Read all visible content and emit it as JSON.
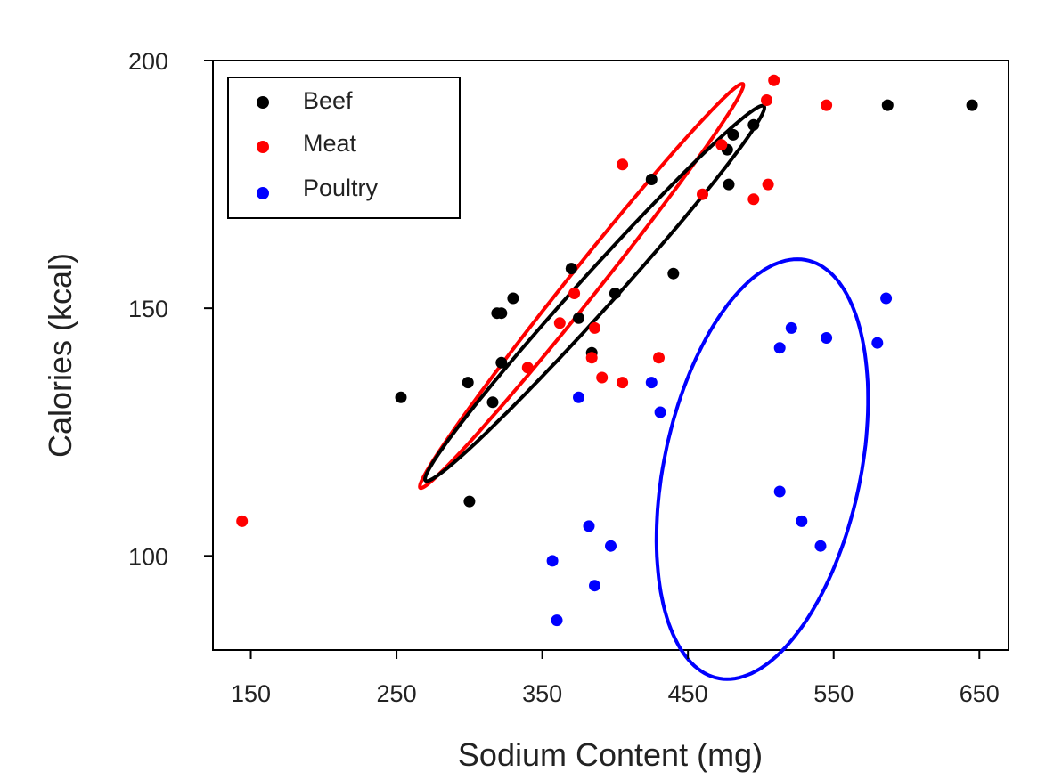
{
  "chart_data": {
    "type": "scatter",
    "title": "",
    "xlabel": "Sodium Content (mg)",
    "ylabel": "Calories (kcal)",
    "xlim": [
      124,
      670
    ],
    "ylim": [
      81,
      200
    ],
    "x_ticks": [
      {
        "value": 150,
        "label": "150"
      },
      {
        "value": 250,
        "label": "250"
      },
      {
        "value": 350,
        "label": "350"
      },
      {
        "value": 450,
        "label": "450"
      },
      {
        "value": 550,
        "label": "550"
      },
      {
        "value": 650,
        "label": "650"
      }
    ],
    "y_ticks": [
      {
        "value": 100,
        "label": "100"
      },
      {
        "value": 150,
        "label": "150"
      },
      {
        "value": 200,
        "label": "200"
      }
    ],
    "grid": false,
    "legend_position": "top-left",
    "series": [
      {
        "name": "Beef",
        "color": "#000000",
        "points": [
          {
            "x": 253,
            "y": 132
          },
          {
            "x": 299,
            "y": 135
          },
          {
            "x": 300,
            "y": 111
          },
          {
            "x": 316,
            "y": 131
          },
          {
            "x": 319,
            "y": 149
          },
          {
            "x": 322,
            "y": 149
          },
          {
            "x": 322,
            "y": 139
          },
          {
            "x": 330,
            "y": 152
          },
          {
            "x": 370,
            "y": 158
          },
          {
            "x": 375,
            "y": 148
          },
          {
            "x": 384,
            "y": 141
          },
          {
            "x": 400,
            "y": 153
          },
          {
            "x": 425,
            "y": 176
          },
          {
            "x": 440,
            "y": 157
          },
          {
            "x": 477,
            "y": 182
          },
          {
            "x": 478,
            "y": 175
          },
          {
            "x": 481,
            "y": 185
          },
          {
            "x": 495,
            "y": 187
          },
          {
            "x": 587,
            "y": 191
          },
          {
            "x": 645,
            "y": 191
          }
        ]
      },
      {
        "name": "Meat",
        "color": "#ff0000",
        "points": [
          {
            "x": 144,
            "y": 107
          },
          {
            "x": 340,
            "y": 138
          },
          {
            "x": 362,
            "y": 147
          },
          {
            "x": 372,
            "y": 153
          },
          {
            "x": 386,
            "y": 146
          },
          {
            "x": 384,
            "y": 140
          },
          {
            "x": 391,
            "y": 136
          },
          {
            "x": 405,
            "y": 135
          },
          {
            "x": 405,
            "y": 179
          },
          {
            "x": 430,
            "y": 140
          },
          {
            "x": 460,
            "y": 173
          },
          {
            "x": 473,
            "y": 183
          },
          {
            "x": 495,
            "y": 172
          },
          {
            "x": 505,
            "y": 175
          },
          {
            "x": 504,
            "y": 192
          },
          {
            "x": 509,
            "y": 196
          },
          {
            "x": 545,
            "y": 191
          }
        ]
      },
      {
        "name": "Poultry",
        "color": "#0000ff",
        "points": [
          {
            "x": 357,
            "y": 99
          },
          {
            "x": 360,
            "y": 87
          },
          {
            "x": 375,
            "y": 132
          },
          {
            "x": 382,
            "y": 106
          },
          {
            "x": 386,
            "y": 94
          },
          {
            "x": 397,
            "y": 102
          },
          {
            "x": 425,
            "y": 135
          },
          {
            "x": 431,
            "y": 129
          },
          {
            "x": 513,
            "y": 142
          },
          {
            "x": 513,
            "y": 113
          },
          {
            "x": 521,
            "y": 146
          },
          {
            "x": 528,
            "y": 107
          },
          {
            "x": 541,
            "y": 102
          },
          {
            "x": 545,
            "y": 144
          },
          {
            "x": 580,
            "y": 143
          },
          {
            "x": 586,
            "y": 152
          }
        ]
      }
    ],
    "ellipses": [
      {
        "series": "Meat",
        "color": "#ff0000",
        "cx": 377,
        "cy": 154.5,
        "a": 290,
        "b": 17,
        "angle": 0.7
      },
      {
        "series": "Beef",
        "color": "#000000",
        "cx": 386,
        "cy": 153,
        "a": 290,
        "b": 20,
        "angle": 0.64
      },
      {
        "series": "Poultry",
        "color": "#0000ff",
        "cx": 501,
        "cy": 117.5,
        "a": 205,
        "b": 130,
        "angle": 1.15
      }
    ]
  }
}
